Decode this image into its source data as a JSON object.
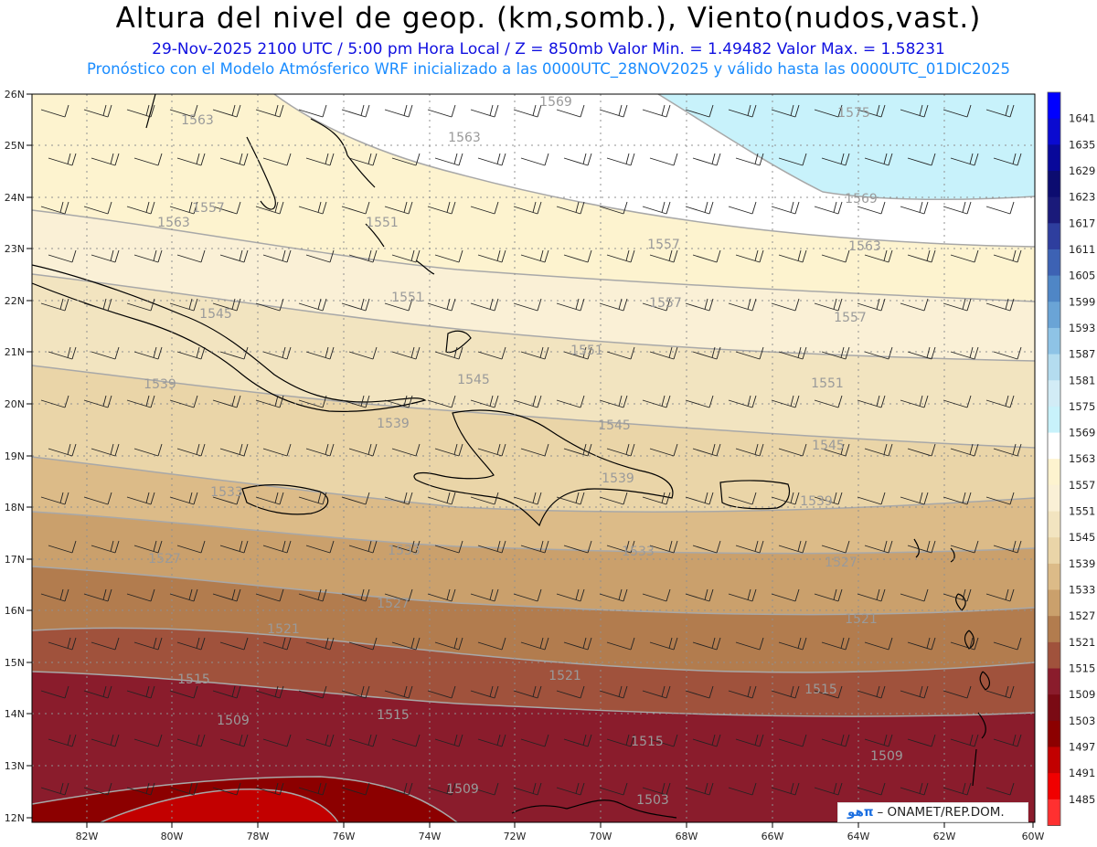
{
  "header": {
    "title": "Altura del nivel de geop. (km,somb.), Viento(nudos,vast.)",
    "subtitle_line1": "29-Nov-2025  2100 UTC / 5:00 pm Hora Local / Z = 850mb    Valor Min. = 1.49482  Valor Max. = 1.58231",
    "subtitle_line2": "Pronóstico con el Modelo Atmósferico WRF inicializado a las 0000UTC_28NOV2025 y válido hasta las  0000UTC_01DIC2025"
  },
  "axes": {
    "lat_labels": [
      "26N",
      "25N",
      "24N",
      "23N",
      "22N",
      "21N",
      "20N",
      "19N",
      "18N",
      "17N",
      "16N",
      "15N",
      "14N",
      "13N",
      "12N"
    ],
    "lon_labels": [
      "82W",
      "80W",
      "78W",
      "76W",
      "74W",
      "72W",
      "70W",
      "68W",
      "66W",
      "64W",
      "62W",
      "60W"
    ]
  },
  "colorbar": {
    "levels": [
      "1641",
      "1635",
      "1629",
      "1623",
      "1617",
      "1611",
      "1605",
      "1599",
      "1593",
      "1587",
      "1581",
      "1575",
      "1569",
      "1563",
      "1557",
      "1551",
      "1545",
      "1539",
      "1533",
      "1527",
      "1521",
      "1515",
      "1509",
      "1503",
      "1497",
      "1491",
      "1485"
    ],
    "colors": [
      "#0000ff",
      "#0a0ad0",
      "#08089a",
      "#0c0c70",
      "#1a1a7a",
      "#2e3e9e",
      "#3d62b4",
      "#4f86c6",
      "#6aa4d6",
      "#8ec3e6",
      "#b4dcef",
      "#d2ecf6",
      "#c8f2fb",
      "#ffffff",
      "#fdf3cf",
      "#faf0d6",
      "#f2e4c0",
      "#ead5a8",
      "#dcbb88",
      "#caa06c",
      "#b27c4e",
      "#a0523c",
      "#8a1c2c",
      "#7a0a14",
      "#8c0000",
      "#c20000",
      "#f00000",
      "#ff3030"
    ]
  },
  "contour_labels": [
    "1569",
    "1575",
    "1563",
    "1563",
    "1569",
    "1557",
    "1557",
    "1563",
    "1563",
    "1551",
    "1551",
    "1557",
    "1557",
    "1545",
    "1545",
    "1551",
    "1551",
    "1539",
    "1539",
    "1545",
    "1545",
    "1539",
    "1539",
    "1533",
    "1533",
    "1533",
    "1527",
    "1527",
    "1527",
    "1521",
    "1521",
    "1521",
    "1515",
    "1515",
    "1515",
    "1515",
    "1509",
    "1509",
    "1509",
    "1503"
  ],
  "credit": {
    "logo": "هوπ",
    "text": "– ONAMET/REP.DOM."
  }
}
